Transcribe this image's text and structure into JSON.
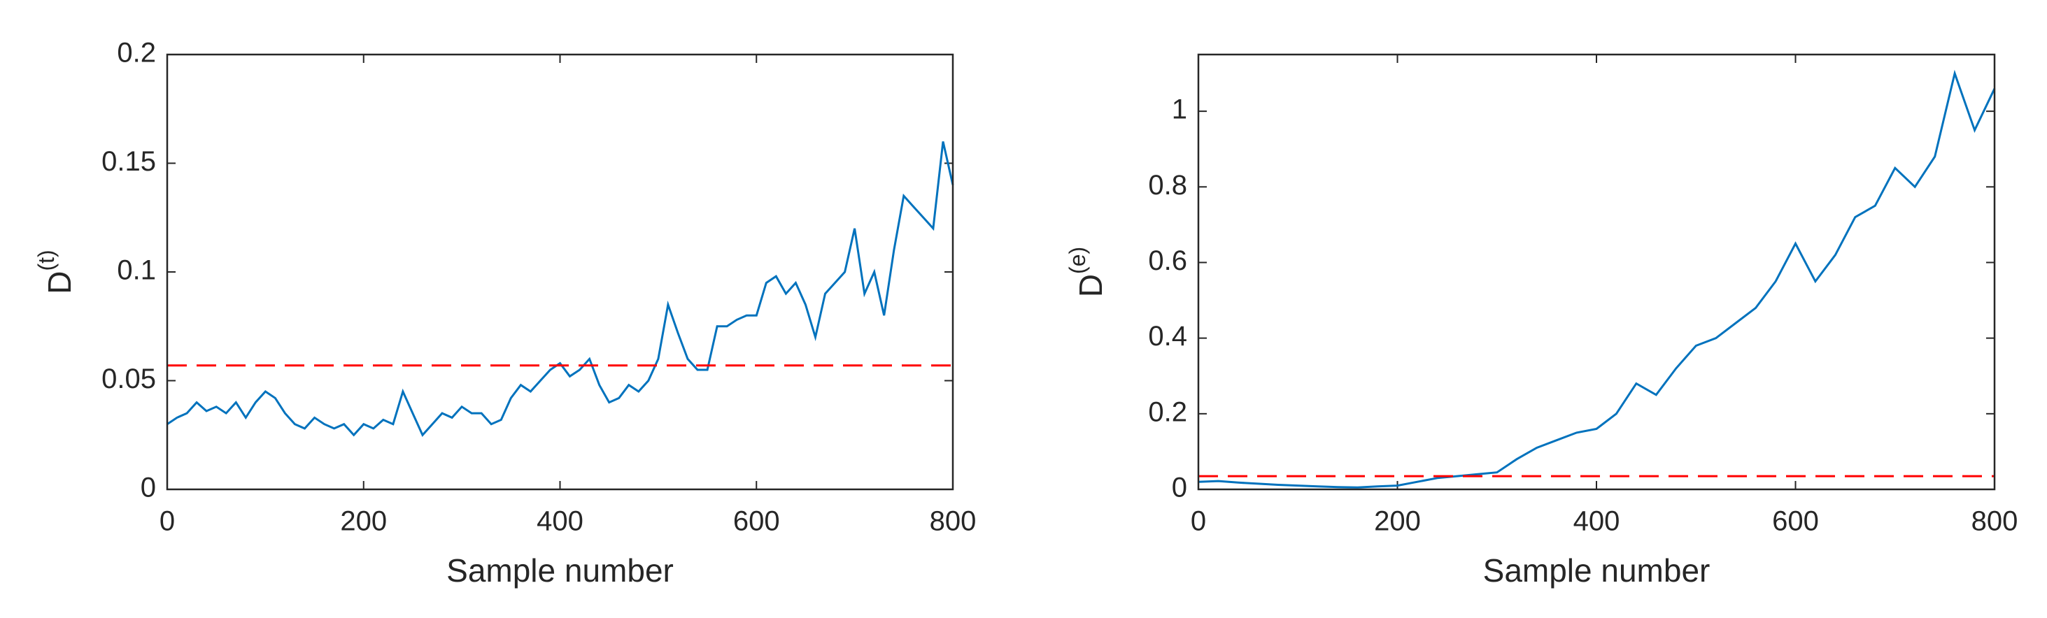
{
  "chart_data": [
    {
      "type": "line",
      "xlabel": "Sample number",
      "ylabel": {
        "base": "D",
        "sup": "(t)"
      },
      "x": [
        0,
        10,
        20,
        30,
        40,
        50,
        60,
        70,
        80,
        90,
        100,
        110,
        120,
        130,
        140,
        150,
        160,
        170,
        180,
        190,
        200,
        210,
        220,
        230,
        240,
        250,
        260,
        270,
        280,
        290,
        300,
        310,
        320,
        330,
        340,
        350,
        360,
        370,
        380,
        390,
        400,
        410,
        420,
        430,
        440,
        450,
        460,
        470,
        480,
        490,
        500,
        510,
        520,
        530,
        540,
        550,
        560,
        570,
        580,
        590,
        600,
        610,
        620,
        630,
        640,
        650,
        660,
        670,
        680,
        690,
        700,
        710,
        720,
        730,
        740,
        750,
        760,
        770,
        780,
        790,
        800
      ],
      "values": [
        0.03,
        0.033,
        0.035,
        0.04,
        0.036,
        0.038,
        0.035,
        0.04,
        0.033,
        0.04,
        0.045,
        0.042,
        0.035,
        0.03,
        0.028,
        0.033,
        0.03,
        0.028,
        0.03,
        0.025,
        0.03,
        0.028,
        0.032,
        0.03,
        0.045,
        0.035,
        0.025,
        0.03,
        0.035,
        0.033,
        0.038,
        0.035,
        0.035,
        0.03,
        0.032,
        0.042,
        0.048,
        0.045,
        0.05,
        0.055,
        0.058,
        0.052,
        0.055,
        0.06,
        0.048,
        0.04,
        0.042,
        0.048,
        0.045,
        0.05,
        0.06,
        0.085,
        0.072,
        0.06,
        0.055,
        0.055,
        0.075,
        0.075,
        0.078,
        0.08,
        0.08,
        0.095,
        0.098,
        0.09,
        0.095,
        0.085,
        0.07,
        0.09,
        0.095,
        0.1,
        0.12,
        0.09,
        0.1,
        0.08,
        0.11,
        0.135,
        0.13,
        0.125,
        0.12,
        0.16,
        0.14
      ],
      "color": "#0072bd",
      "threshold": 0.057,
      "threshold_color": "#ff0000",
      "xlim": [
        0,
        800
      ],
      "xticks": [
        0,
        200,
        400,
        600,
        800
      ],
      "ylim": [
        0,
        0.2
      ],
      "yticks": [
        0,
        0.05,
        0.1,
        0.15,
        0.2
      ]
    },
    {
      "type": "line",
      "xlabel": "Sample number",
      "ylabel": {
        "base": "D",
        "sup": "(e)"
      },
      "x": [
        0,
        20,
        40,
        60,
        80,
        100,
        120,
        140,
        160,
        180,
        200,
        220,
        240,
        260,
        280,
        300,
        320,
        340,
        360,
        380,
        400,
        420,
        440,
        460,
        480,
        500,
        520,
        540,
        560,
        580,
        600,
        620,
        640,
        660,
        680,
        700,
        720,
        740,
        760,
        780,
        800
      ],
      "values": [
        0.02,
        0.022,
        0.018,
        0.015,
        0.012,
        0.01,
        0.008,
        0.006,
        0.005,
        0.008,
        0.01,
        0.02,
        0.03,
        0.035,
        0.04,
        0.045,
        0.08,
        0.11,
        0.13,
        0.15,
        0.16,
        0.2,
        0.28,
        0.25,
        0.32,
        0.38,
        0.4,
        0.44,
        0.48,
        0.55,
        0.65,
        0.55,
        0.62,
        0.72,
        0.75,
        0.85,
        0.8,
        0.88,
        1.1,
        0.95,
        1.06
      ],
      "color": "#0072bd",
      "threshold": 0.035,
      "threshold_color": "#ff0000",
      "xlim": [
        0,
        800
      ],
      "xticks": [
        0,
        200,
        400,
        600,
        800
      ],
      "ylim": [
        0,
        1.15
      ],
      "yticks": [
        0,
        0.2,
        0.4,
        0.6,
        0.8,
        1
      ]
    }
  ]
}
